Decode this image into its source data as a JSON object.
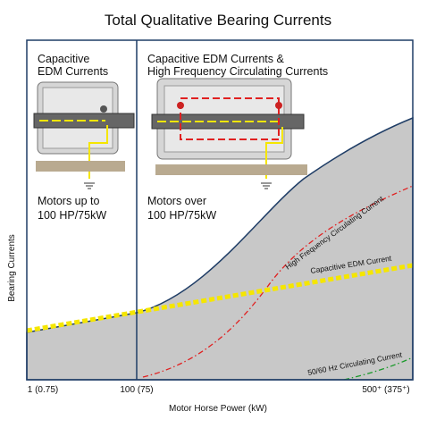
{
  "title": "Total Qualitative Bearing Currents",
  "y_axis_label": "Bearing Currents",
  "x_axis_label": "Motor Horse Power (kW)",
  "x_ticks": [
    "1 (0.75)",
    "100 (75)",
    "500⁺ (375⁺)"
  ],
  "panels": [
    {
      "heading": [
        "Capacitive",
        "EDM Currents"
      ],
      "motors": [
        "Motors up to",
        "100 HP/75kW"
      ]
    },
    {
      "heading": [
        "Capacitive EDM Currents &",
        "High Frequency Circulating Currents"
      ],
      "motors": [
        "Motors over",
        "100 HP/75kW"
      ]
    }
  ],
  "curve_labels": [
    "High Frequency Circulating Current",
    "Capacitive EDM Current",
    "50/60 Hz Circulating Current"
  ]
}
